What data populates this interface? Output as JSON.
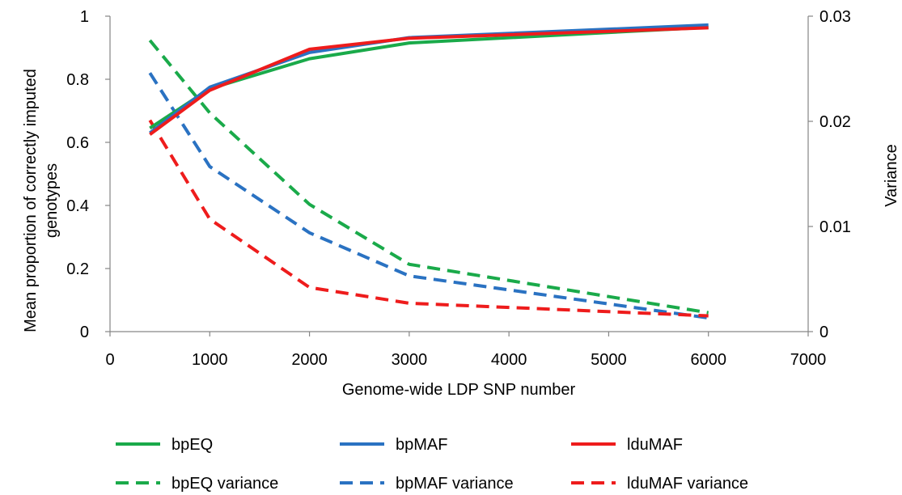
{
  "chart_data": {
    "type": "line",
    "xlabel": "Genome-wide LDP SNP number",
    "ylabel_lines": [
      "Mean proportion of correctly imputed",
      "genotypes"
    ],
    "y2label": "Variance",
    "xlim": [
      0,
      7000
    ],
    "xticks": [
      "0",
      "1000",
      "2000",
      "3000",
      "4000",
      "5000",
      "6000",
      "7000"
    ],
    "ylim": [
      0,
      1
    ],
    "yticks": [
      "0",
      "0.2",
      "0.4",
      "0.6",
      "0.8",
      "1"
    ],
    "y2lim": [
      0,
      0.03
    ],
    "y2ticks": [
      "0",
      "0.01",
      "0.02",
      "0.03"
    ],
    "grid": false,
    "legend_position": "bottom",
    "x": [
      400,
      1000,
      2000,
      3000,
      6000
    ],
    "series": [
      {
        "name": "bpEQ",
        "axis": "left",
        "style": "solid",
        "color": "#1aaa4a",
        "values": [
          0.645,
          0.77,
          0.865,
          0.915,
          0.965
        ]
      },
      {
        "name": "bpMAF",
        "axis": "left",
        "style": "solid",
        "color": "#2a72c2",
        "values": [
          0.63,
          0.775,
          0.885,
          0.932,
          0.972
        ]
      },
      {
        "name": "lduMAF",
        "axis": "left",
        "style": "solid",
        "color": "#ee1c1c",
        "values": [
          0.625,
          0.765,
          0.895,
          0.93,
          0.963
        ]
      },
      {
        "name": "bpEQ variance",
        "axis": "right",
        "style": "dashed",
        "color": "#1aaa4a",
        "values": [
          0.0277,
          0.0208,
          0.0121,
          0.0064,
          0.0018
        ]
      },
      {
        "name": "bpMAF variance",
        "axis": "right",
        "style": "dashed",
        "color": "#2a72c2",
        "values": [
          0.0246,
          0.0157,
          0.0094,
          0.0053,
          0.0013
        ]
      },
      {
        "name": "lduMAF variance",
        "axis": "right",
        "style": "dashed",
        "color": "#ee1c1c",
        "values": [
          0.0201,
          0.0107,
          0.0042,
          0.0027,
          0.0015
        ]
      }
    ]
  }
}
